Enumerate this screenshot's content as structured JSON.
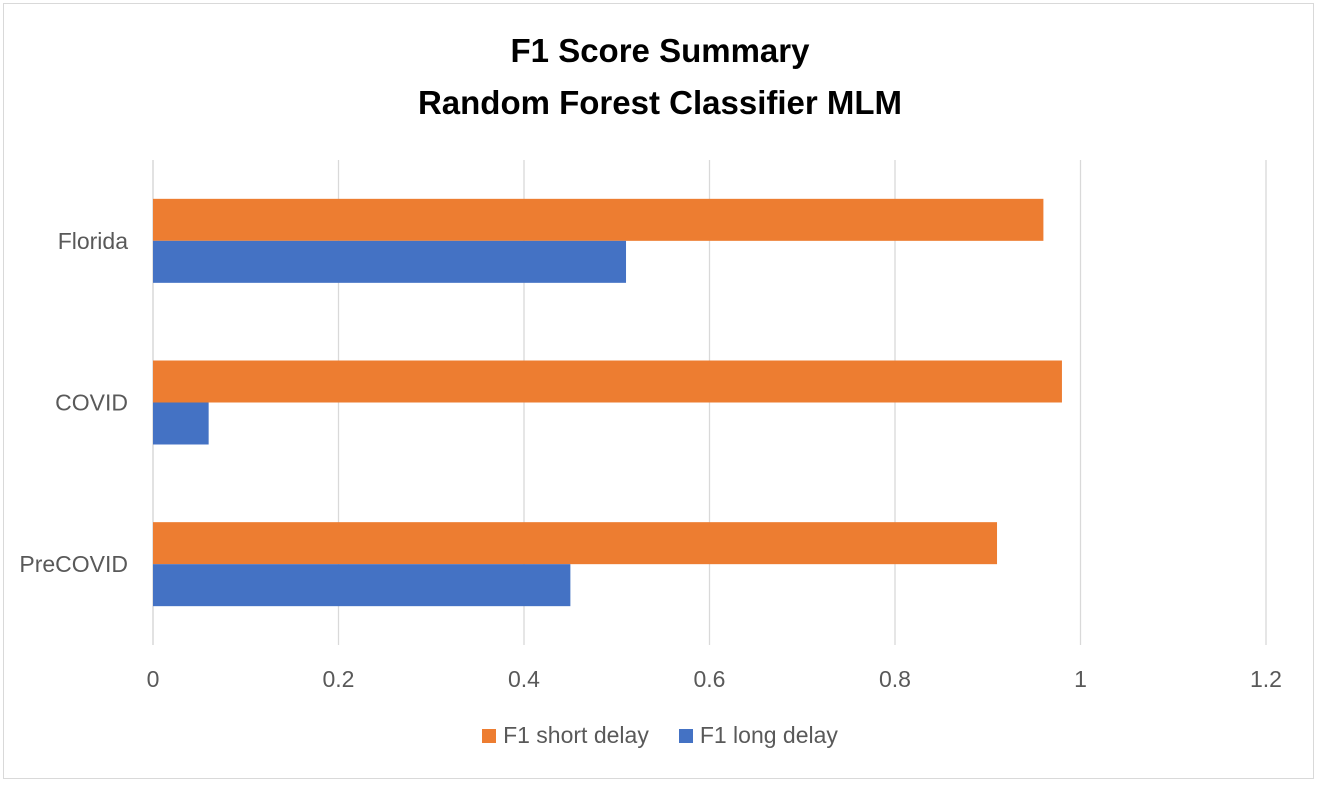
{
  "chart_data": {
    "type": "bar",
    "orientation": "horizontal",
    "title": [
      "F1 Score Summary",
      "Random Forest Classifier MLM"
    ],
    "categories": [
      "Florida",
      "COVID",
      "PreCOVID"
    ],
    "series": [
      {
        "name": "F1 short delay",
        "color": "#ED7D31",
        "values": [
          0.96,
          0.98,
          0.91
        ]
      },
      {
        "name": "F1 long delay",
        "color": "#4472C4",
        "values": [
          0.51,
          0.06,
          0.45
        ]
      }
    ],
    "xlim": [
      0,
      1.2
    ],
    "xticks": [
      "0",
      "0.2",
      "0.4",
      "0.6",
      "0.8",
      "1",
      "1.2"
    ],
    "grid": "vertical",
    "legend_position": "bottom"
  }
}
